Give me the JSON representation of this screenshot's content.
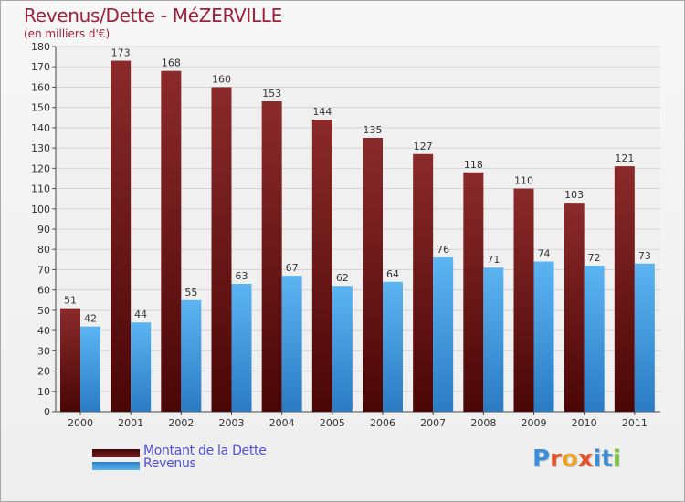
{
  "chart_data": {
    "type": "bar",
    "title": "Revenus/Dette - MéZERVILLE",
    "subtitle": "(en milliers d'€)",
    "categories": [
      "2000",
      "2001",
      "2002",
      "2003",
      "2004",
      "2005",
      "2006",
      "2007",
      "2008",
      "2009",
      "2010",
      "2011"
    ],
    "series": [
      {
        "name": "Montant de la Dette",
        "color": "#7b1a1a",
        "values": [
          51,
          173,
          168,
          160,
          153,
          144,
          135,
          127,
          118,
          110,
          103,
          121
        ]
      },
      {
        "name": "Revenus",
        "color": "#4aa3e8",
        "values": [
          42,
          44,
          55,
          63,
          67,
          62,
          64,
          76,
          71,
          74,
          72,
          73
        ]
      }
    ],
    "ylim": [
      0,
      180
    ],
    "ytick_step": 10,
    "grid": true,
    "legend_position": "bottom-left"
  },
  "logo": {
    "text": "Proxiti",
    "letter_colors": [
      "#3c8fd6",
      "#e4522b",
      "#f0a020",
      "#e4522b",
      "#3c8fd6",
      "#3c8fd6",
      "#7cbf3c"
    ]
  }
}
